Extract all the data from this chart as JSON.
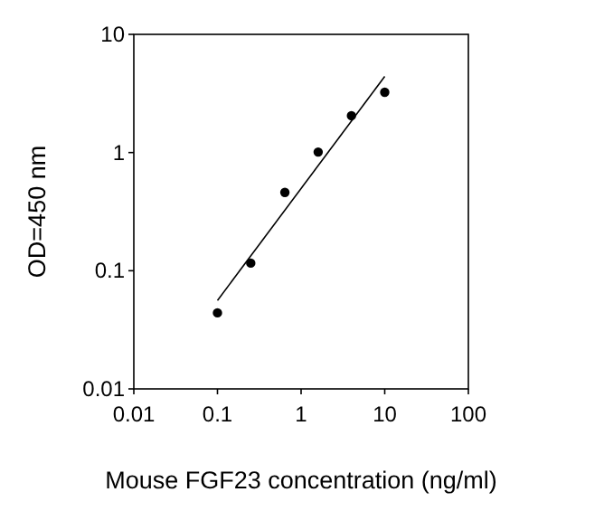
{
  "chart_data": {
    "type": "scatter",
    "xlabel": "Mouse FGF23 concentration (ng/ml)",
    "ylabel": "OD=450 nm",
    "log": "xy",
    "xlim": [
      0.01,
      100
    ],
    "xticks": [
      0.01,
      0.1,
      1,
      10,
      100
    ],
    "ylim": [
      0.01,
      10
    ],
    "yticks": [
      0.01,
      0.1,
      1,
      10
    ],
    "marker": "circle",
    "series": [
      {
        "color": "#000000",
        "x": [
          0.1,
          0.25,
          0.64,
          1.6,
          4,
          10
        ],
        "values": [
          0.044,
          0.116,
          0.46,
          1.01,
          2.05,
          3.24
        ]
      },
      {
        "type": "line",
        "color": "#000000",
        "x": [
          0.1,
          10
        ],
        "values": [
          0.056,
          4.4
        ],
        "marker": "none"
      }
    ]
  }
}
